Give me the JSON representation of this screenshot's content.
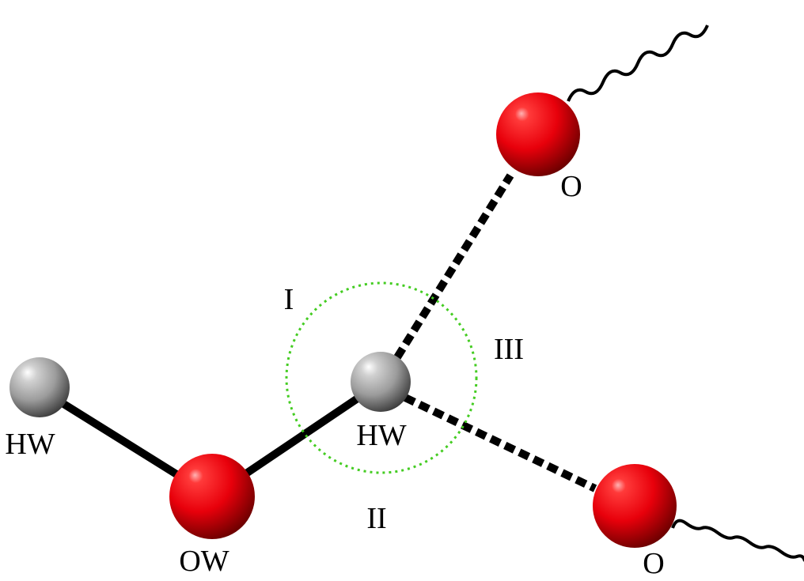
{
  "labels": {
    "hw_left": "HW",
    "hw_center": "HW",
    "ow": "OW",
    "o_top": "O",
    "o_bottom": "O",
    "region_1": "I",
    "region_2": "II",
    "region_3": "III"
  },
  "colors": {
    "oxygen": "#e8000b",
    "hydrogen": "#9c9c9c",
    "bond": "#000000",
    "selection_circle": "#44cc22"
  }
}
